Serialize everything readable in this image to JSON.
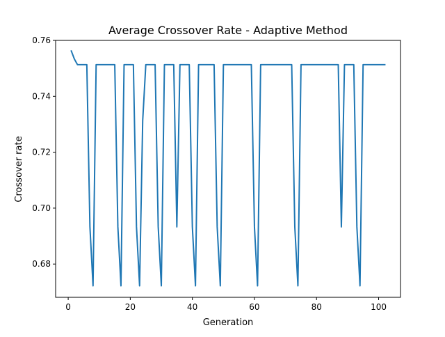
{
  "chart_data": {
    "type": "line",
    "title": "Average Crossover Rate - Adaptive Method",
    "xlabel": "Generation",
    "ylabel": "Crossover rate",
    "xlim": [
      -4.05,
      107.05
    ],
    "ylim": [
      0.6681,
      0.76
    ],
    "xticks": [
      0,
      20,
      40,
      60,
      80,
      100
    ],
    "xtick_labels": [
      "0",
      "20",
      "40",
      "60",
      "80",
      "100"
    ],
    "yticks": [
      0.68,
      0.7,
      0.72,
      0.74,
      0.76
    ],
    "ytick_labels": [
      "0.68",
      "0.70",
      "0.72",
      "0.74",
      "0.76"
    ],
    "grid": false,
    "legend": "none",
    "series": [
      {
        "color": "#1f77b4",
        "points": [
          [
            1,
            0.7562
          ],
          [
            2,
            0.7533
          ],
          [
            3,
            0.7513
          ],
          [
            4,
            0.7513
          ],
          [
            5,
            0.7513
          ],
          [
            6,
            0.7513
          ],
          [
            7,
            0.6933
          ],
          [
            8,
            0.6722
          ],
          [
            9,
            0.7513
          ],
          [
            10,
            0.7513
          ],
          [
            11,
            0.7513
          ],
          [
            12,
            0.7513
          ],
          [
            13,
            0.7513
          ],
          [
            14,
            0.7513
          ],
          [
            15,
            0.7513
          ],
          [
            16,
            0.6933
          ],
          [
            17,
            0.6722
          ],
          [
            18,
            0.7513
          ],
          [
            19,
            0.7513
          ],
          [
            20,
            0.7513
          ],
          [
            21,
            0.7513
          ],
          [
            22,
            0.6933
          ],
          [
            23,
            0.6722
          ],
          [
            24,
            0.7313
          ],
          [
            25,
            0.7513
          ],
          [
            26,
            0.7513
          ],
          [
            27,
            0.7513
          ],
          [
            28,
            0.7513
          ],
          [
            29,
            0.6933
          ],
          [
            30,
            0.6722
          ],
          [
            31,
            0.7513
          ],
          [
            32,
            0.7513
          ],
          [
            33,
            0.7513
          ],
          [
            34,
            0.7513
          ],
          [
            35,
            0.6933
          ],
          [
            36,
            0.7513
          ],
          [
            37,
            0.7513
          ],
          [
            38,
            0.7513
          ],
          [
            39,
            0.7513
          ],
          [
            40,
            0.6933
          ],
          [
            41,
            0.6722
          ],
          [
            42,
            0.7513
          ],
          [
            43,
            0.7513
          ],
          [
            44,
            0.7513
          ],
          [
            45,
            0.7513
          ],
          [
            46,
            0.7513
          ],
          [
            47,
            0.7513
          ],
          [
            48,
            0.6933
          ],
          [
            49,
            0.6722
          ],
          [
            50,
            0.7513
          ],
          [
            51,
            0.7513
          ],
          [
            52,
            0.7513
          ],
          [
            53,
            0.7513
          ],
          [
            54,
            0.7513
          ],
          [
            55,
            0.7513
          ],
          [
            56,
            0.7513
          ],
          [
            57,
            0.7513
          ],
          [
            58,
            0.7513
          ],
          [
            59,
            0.7513
          ],
          [
            60,
            0.6933
          ],
          [
            61,
            0.6722
          ],
          [
            62,
            0.7513
          ],
          [
            63,
            0.7513
          ],
          [
            64,
            0.7513
          ],
          [
            65,
            0.7513
          ],
          [
            66,
            0.7513
          ],
          [
            67,
            0.7513
          ],
          [
            68,
            0.7513
          ],
          [
            69,
            0.7513
          ],
          [
            70,
            0.7513
          ],
          [
            71,
            0.7513
          ],
          [
            72,
            0.7513
          ],
          [
            73,
            0.6933
          ],
          [
            74,
            0.6722
          ],
          [
            75,
            0.7513
          ],
          [
            76,
            0.7513
          ],
          [
            77,
            0.7513
          ],
          [
            78,
            0.7513
          ],
          [
            79,
            0.7513
          ],
          [
            80,
            0.7513
          ],
          [
            81,
            0.7513
          ],
          [
            82,
            0.7513
          ],
          [
            83,
            0.7513
          ],
          [
            84,
            0.7513
          ],
          [
            85,
            0.7513
          ],
          [
            86,
            0.7513
          ],
          [
            87,
            0.7513
          ],
          [
            88,
            0.6933
          ],
          [
            89,
            0.7513
          ],
          [
            90,
            0.7513
          ],
          [
            91,
            0.7513
          ],
          [
            92,
            0.7513
          ],
          [
            93,
            0.6933
          ],
          [
            94,
            0.6722
          ],
          [
            95,
            0.7513
          ],
          [
            96,
            0.7513
          ],
          [
            97,
            0.7513
          ],
          [
            98,
            0.7513
          ],
          [
            99,
            0.7513
          ],
          [
            100,
            0.7513
          ],
          [
            101,
            0.7513
          ],
          [
            102,
            0.7513
          ]
        ]
      }
    ]
  }
}
